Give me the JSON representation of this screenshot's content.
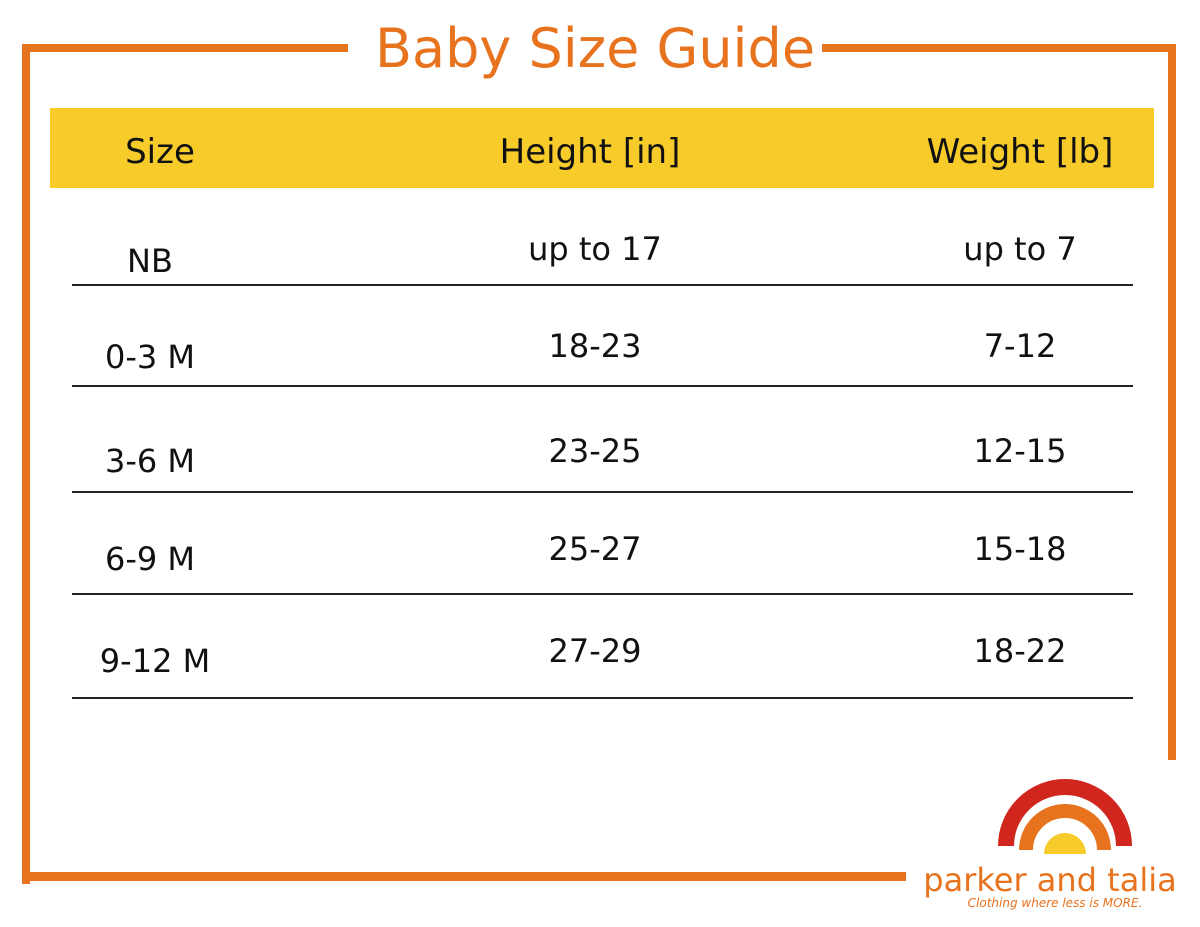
{
  "title": "Baby Size Guide",
  "colors": {
    "accent": "#e8731e",
    "header_band": "#f7cc2a",
    "logo_red": "#d0261d",
    "logo_yellow": "#f7cc2a"
  },
  "table": {
    "headers": [
      "Size",
      "Height [in]",
      "Weight [lb]"
    ],
    "rows": [
      [
        "NB",
        "up to 17",
        "up to 7"
      ],
      [
        "0-3 M",
        "18-23",
        "7-12"
      ],
      [
        "3-6 M",
        "23-25",
        "12-15"
      ],
      [
        "6-9 M",
        "25-27",
        "15-18"
      ],
      [
        "9-12 M",
        "27-29",
        "18-22"
      ]
    ]
  },
  "brand": {
    "name": "parker and talia",
    "tagline": "Clothing where less is MORE.",
    "logo_icon": "rainbow-logo-icon"
  }
}
